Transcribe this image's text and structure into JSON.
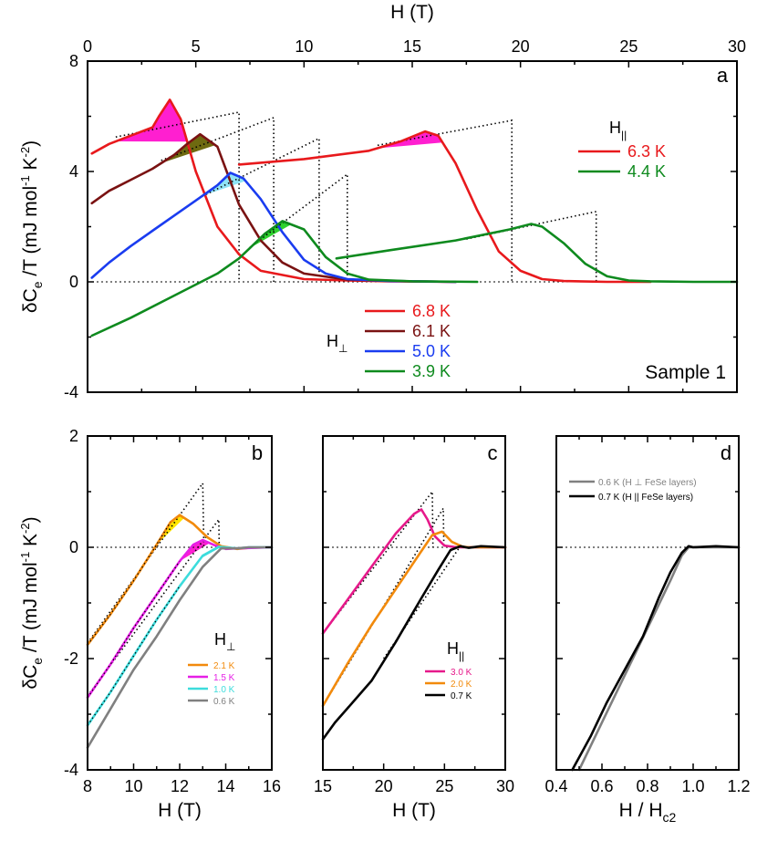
{
  "chart_data": [
    {
      "panel": "a",
      "type": "line",
      "x_axis_top_label": "H (T)",
      "ylabel": "δC_e /T (mJ mol^-1 K^-2)",
      "xlim": [
        0,
        30
      ],
      "ylim": [
        -4,
        8
      ],
      "xticks": [
        "0",
        "5",
        "10",
        "15",
        "20",
        "25",
        "30"
      ],
      "yticks": [
        "-4",
        "0",
        "4",
        "8"
      ],
      "annotation": "Sample 1",
      "legend_groups": [
        {
          "title_main": "H",
          "title_sub": "||",
          "placement": "top-right",
          "entries": [
            "6.3 K",
            "4.4 K"
          ]
        },
        {
          "title_main": "H",
          "title_sub": "⊥",
          "placement": "bottom-center",
          "entries": [
            "6.8 K",
            "6.1 K",
            "5.0 K",
            "3.9 K"
          ]
        }
      ],
      "series": [
        {
          "name": "6.8 K",
          "color": "#e8191c",
          "x": [
            0.2,
            1,
            2,
            3,
            3.3,
            3.8,
            4.3,
            5,
            6,
            7,
            8,
            10,
            12,
            14,
            17
          ],
          "y": [
            4.65,
            5.0,
            5.3,
            5.6,
            6.0,
            6.6,
            5.9,
            4.0,
            2.0,
            1.0,
            0.4,
            0.1,
            0.05,
            0.02,
            0
          ]
        },
        {
          "name": "6.1 K",
          "color": "#7a1212",
          "x": [
            0.2,
            1,
            2,
            3,
            4,
            4.6,
            5.2,
            6,
            7,
            8,
            9,
            10,
            12,
            14,
            17
          ],
          "y": [
            2.85,
            3.3,
            3.7,
            4.1,
            4.6,
            5.0,
            5.35,
            4.9,
            2.8,
            1.5,
            0.7,
            0.3,
            0.08,
            0.03,
            0
          ]
        },
        {
          "name": "5.0 K",
          "color": "#1a3cf0",
          "x": [
            0.2,
            1,
            2,
            3,
            4,
            5,
            6,
            6.6,
            7.2,
            8,
            9,
            10,
            11,
            12,
            14,
            17
          ],
          "y": [
            0.15,
            0.7,
            1.3,
            1.85,
            2.4,
            2.95,
            3.5,
            3.95,
            3.75,
            3.0,
            1.8,
            0.8,
            0.3,
            0.1,
            0.03,
            0
          ]
        },
        {
          "name": "3.9 K",
          "color": "#0e8a1e",
          "x": [
            0.2,
            2,
            4,
            6,
            7,
            8.2,
            9,
            10,
            11,
            12,
            13,
            15,
            18
          ],
          "y": [
            -1.95,
            -1.3,
            -0.5,
            0.3,
            0.85,
            1.75,
            2.2,
            1.9,
            0.9,
            0.3,
            0.08,
            0.02,
            0
          ]
        },
        {
          "name": "6.3 K",
          "color": "#e8191c",
          "x": [
            7,
            10,
            13,
            14.5,
            15.6,
            16.2,
            17,
            18,
            19,
            20,
            21,
            22,
            24,
            26
          ],
          "y": [
            4.25,
            4.45,
            4.75,
            5.1,
            5.45,
            5.3,
            4.3,
            2.6,
            1.1,
            0.4,
            0.1,
            0.03,
            0,
            0
          ]
        },
        {
          "name": "4.4 K",
          "color": "#0e8a1e",
          "x": [
            11.5,
            14,
            17,
            19.5,
            20.5,
            21,
            22,
            23,
            24,
            25,
            26,
            28,
            30
          ],
          "y": [
            0.85,
            1.15,
            1.5,
            1.9,
            2.1,
            2.0,
            1.4,
            0.65,
            0.2,
            0.05,
            0.02,
            0,
            0
          ]
        }
      ]
    },
    {
      "panel": "b",
      "type": "line",
      "xlabel": "H (T)",
      "ylabel": "δC_e /T (mJ mol^-1 K^-2)",
      "xlim": [
        8,
        16
      ],
      "ylim": [
        -4,
        2
      ],
      "xticks": [
        "8",
        "10",
        "12",
        "14",
        "16"
      ],
      "yticks": [
        "-4",
        "-2",
        "0",
        "2"
      ],
      "legend_title_main": "H",
      "legend_title_sub": "⊥",
      "series": [
        {
          "name": "2.1 K",
          "color": "#f28a0c",
          "x": [
            8,
            9,
            10,
            11,
            11.6,
            12,
            12.6,
            13.2,
            13.8,
            14.5,
            15,
            16
          ],
          "y": [
            -1.75,
            -1.2,
            -0.6,
            0.05,
            0.45,
            0.58,
            0.42,
            0.18,
            0.02,
            -0.03,
            -0.01,
            0
          ]
        },
        {
          "name": "1.5 K",
          "color": "#e61ee6",
          "x": [
            8,
            9,
            10,
            11,
            12,
            12.6,
            13,
            13.5,
            14,
            14.5,
            16
          ],
          "y": [
            -2.7,
            -2.1,
            -1.45,
            -0.85,
            -0.25,
            0.05,
            0.13,
            0.04,
            -0.03,
            -0.02,
            0
          ]
        },
        {
          "name": "1.0 K",
          "color": "#3cdcdc",
          "x": [
            8,
            9,
            10,
            11,
            12,
            13,
            13.7,
            14.5,
            15,
            16
          ],
          "y": [
            -3.2,
            -2.6,
            -1.95,
            -1.3,
            -0.7,
            -0.15,
            0.01,
            -0.02,
            0,
            0
          ]
        },
        {
          "name": "0.6 K",
          "color": "#808080",
          "x": [
            8,
            9,
            10,
            11,
            12,
            13,
            13.8,
            14.5,
            15,
            16
          ],
          "y": [
            -3.6,
            -2.9,
            -2.2,
            -1.6,
            -0.95,
            -0.35,
            -0.02,
            -0.02,
            0,
            0
          ]
        }
      ]
    },
    {
      "panel": "c",
      "type": "line",
      "xlabel": "H (T)",
      "xlim": [
        15,
        30
      ],
      "ylim": [
        -4,
        2
      ],
      "xticks": [
        "15",
        "20",
        "25",
        "30"
      ],
      "legend_title_main": "H",
      "legend_title_sub": "||",
      "series": [
        {
          "name": "3.0 K",
          "color": "#e6198a",
          "x": [
            15,
            17,
            19,
            21,
            22.5,
            23.1,
            23.6,
            24.2,
            25,
            26,
            30
          ],
          "y": [
            -1.55,
            -0.95,
            -0.35,
            0.25,
            0.6,
            0.68,
            0.5,
            0.2,
            0.03,
            0,
            0
          ]
        },
        {
          "name": "2.0 K",
          "color": "#f28a0c",
          "x": [
            15,
            17,
            19,
            21,
            23,
            24,
            24.8,
            25.6,
            26.5,
            27,
            30
          ],
          "y": [
            -2.85,
            -2.1,
            -1.4,
            -0.75,
            -0.1,
            0.22,
            0.28,
            0.1,
            0.01,
            0,
            0
          ]
        },
        {
          "name": "0.7 K",
          "color": "#000000",
          "x": [
            15,
            16,
            17,
            19,
            21,
            23,
            24.5,
            25.5,
            26.3,
            27,
            28,
            30
          ],
          "y": [
            -3.45,
            -3.15,
            -2.9,
            -2.4,
            -1.7,
            -0.95,
            -0.4,
            -0.05,
            0.02,
            -0.01,
            0.02,
            0
          ]
        }
      ]
    },
    {
      "panel": "d",
      "type": "line",
      "xlabel": "H / H_c2",
      "xlim": [
        0.4,
        1.2
      ],
      "ylim": [
        -4,
        2
      ],
      "xticks": [
        "0.4",
        "0.6",
        "0.8",
        "1.0",
        "1.2"
      ],
      "series": [
        {
          "name": "0.6 K (H ⊥ FeSe layers)",
          "color": "#808080",
          "x": [
            0.5,
            0.6,
            0.7,
            0.8,
            0.9,
            0.95,
            0.98,
            1.0,
            1.1,
            1.2
          ],
          "y": [
            -4.0,
            -3.15,
            -2.3,
            -1.45,
            -0.6,
            -0.15,
            0.0,
            0.0,
            0.0,
            0.0
          ]
        },
        {
          "name": "0.7 K (H || FeSe layers)",
          "color": "#000000",
          "x": [
            0.47,
            0.55,
            0.62,
            0.7,
            0.78,
            0.85,
            0.9,
            0.95,
            0.98,
            1.0,
            1.1,
            1.2
          ],
          "y": [
            -4.0,
            -3.4,
            -2.8,
            -2.2,
            -1.6,
            -0.9,
            -0.45,
            -0.1,
            0.02,
            0.0,
            0.02,
            0.0
          ]
        }
      ]
    }
  ]
}
